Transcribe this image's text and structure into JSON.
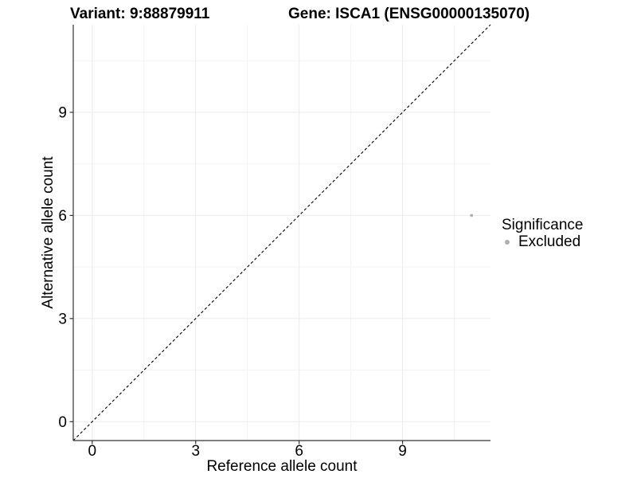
{
  "header": {
    "title_left": "Variant: 9:88879911",
    "title_right": "Gene: ISCA1 (ENSG00000135070)"
  },
  "chart_data": {
    "type": "scatter",
    "xlabel": "Reference allele count",
    "ylabel": "Alternative allele count",
    "xlim": [
      -0.55,
      11.55
    ],
    "ylim": [
      -0.55,
      11.55
    ],
    "x_ticks": [
      0,
      3,
      6,
      9
    ],
    "y_ticks": [
      0,
      3,
      6,
      9
    ],
    "x_minor_ticks": [
      1.5,
      4.5,
      7.5,
      10.5
    ],
    "y_minor_ticks": [
      1.5,
      4.5,
      7.5,
      10.5
    ],
    "grid": "major+minor",
    "points": [
      {
        "x": 11,
        "y": 6,
        "series": "Excluded"
      }
    ],
    "identity_line": {
      "slope": 1,
      "intercept": 0,
      "style": "dashed"
    },
    "legend": {
      "title": "Significance",
      "position": "right",
      "entries": [
        {
          "label": "Excluded",
          "color": "#aeaeae"
        }
      ]
    },
    "colors": {
      "point": "#b0b0b0",
      "grid_major": "#ebebeb",
      "grid_minor": "#f3f3f3",
      "axis_line": "#333333",
      "tick_mark": "#333333",
      "tick_label": "#000000",
      "dashed_line": "#000000"
    }
  }
}
